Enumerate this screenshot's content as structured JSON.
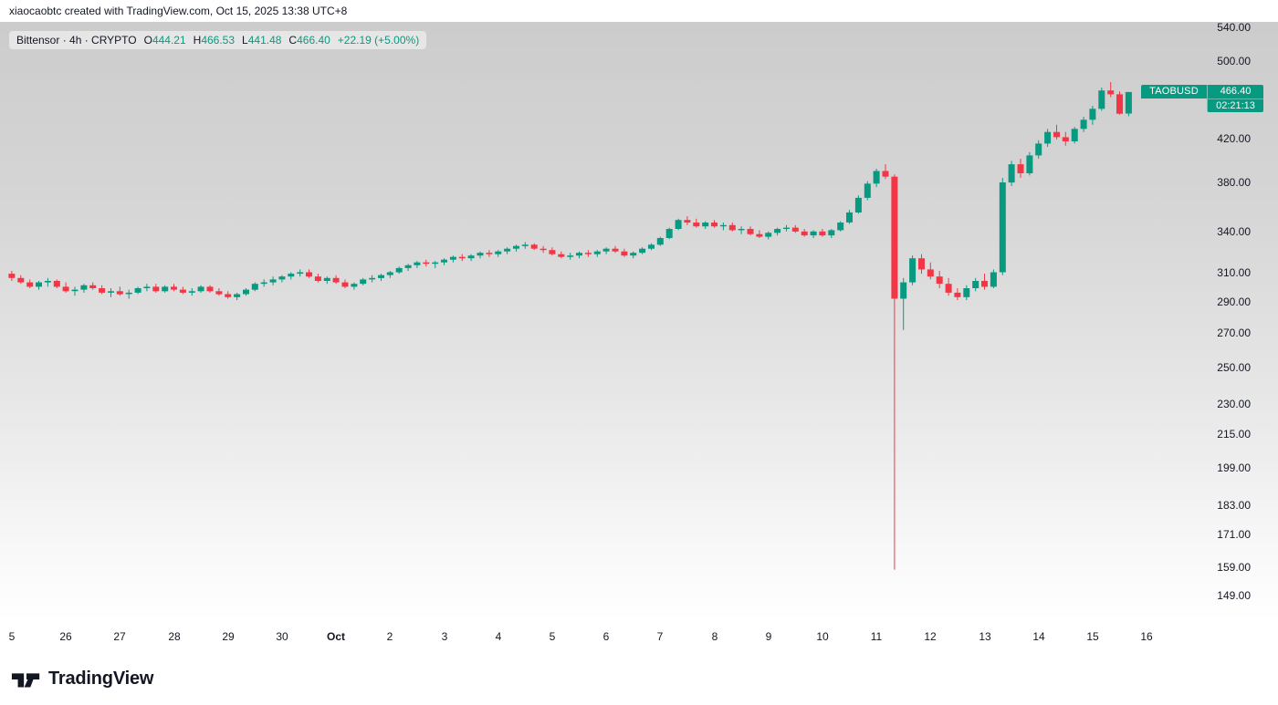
{
  "attribution": {
    "text": "xiaocaobtc created with TradingView.com, Oct 15, 2025 13:38 UTC+8"
  },
  "legend": {
    "title": "Bittensor · 4h · CRYPTO",
    "o_label": "O",
    "o_value": "444.21",
    "h_label": "H",
    "h_value": "466.53",
    "l_label": "L",
    "l_value": "441.48",
    "c_label": "C",
    "c_value": "466.40",
    "change": "+22.19 (+5.00%)"
  },
  "price_label": {
    "symbol": "TAOBUSD",
    "price": "466.40",
    "countdown": "02:21:13"
  },
  "colors": {
    "up": "#089981",
    "down": "#f23645",
    "text": "#131722",
    "label_bg": "#089981"
  },
  "footer": {
    "brand": "TradingView"
  },
  "chart_data": {
    "type": "candlestick",
    "title": "Bittensor · 4h · CRYPTO",
    "symbol": "TAOBUSD",
    "interval": "4h",
    "exchange": "CRYPTO",
    "scale": "log",
    "ylim": [
      149,
      540
    ],
    "last_price": 466.4,
    "candles_per_day": 6,
    "y_axis_labels": [
      540,
      500,
      420,
      380,
      340,
      310,
      290,
      270,
      250,
      230,
      215,
      199,
      183,
      171,
      159,
      149
    ],
    "x_axis": [
      {
        "label": "5",
        "day": 0
      },
      {
        "label": "26",
        "day": 1
      },
      {
        "label": "27",
        "day": 2
      },
      {
        "label": "28",
        "day": 3
      },
      {
        "label": "29",
        "day": 4
      },
      {
        "label": "30",
        "day": 5
      },
      {
        "label": "Oct",
        "day": 6,
        "bold": true
      },
      {
        "label": "2",
        "day": 7
      },
      {
        "label": "3",
        "day": 8
      },
      {
        "label": "4",
        "day": 9
      },
      {
        "label": "5",
        "day": 10
      },
      {
        "label": "6",
        "day": 11
      },
      {
        "label": "7",
        "day": 12
      },
      {
        "label": "8",
        "day": 13
      },
      {
        "label": "9",
        "day": 14
      },
      {
        "label": "10",
        "day": 15
      },
      {
        "label": "11",
        "day": 16
      },
      {
        "label": "12",
        "day": 17
      },
      {
        "label": "13",
        "day": 18
      },
      {
        "label": "14",
        "day": 19
      },
      {
        "label": "15",
        "day": 20
      },
      {
        "label": "16",
        "day": 21
      }
    ],
    "candles": [
      [
        309,
        311,
        304,
        306
      ],
      [
        306,
        308,
        302,
        303
      ],
      [
        303,
        305,
        299,
        300
      ],
      [
        300,
        304,
        298,
        303
      ],
      [
        303,
        306,
        300,
        304
      ],
      [
        304,
        305,
        299,
        300
      ],
      [
        300,
        303,
        296,
        297
      ],
      [
        297,
        300,
        294,
        298
      ],
      [
        298,
        302,
        296,
        301
      ],
      [
        301,
        303,
        298,
        299
      ],
      [
        299,
        301,
        295,
        296
      ],
      [
        296,
        299,
        293,
        297
      ],
      [
        297,
        300,
        294,
        295
      ],
      [
        295,
        298,
        292,
        296
      ],
      [
        296,
        300,
        295,
        299
      ],
      [
        299,
        302,
        297,
        300
      ],
      [
        300,
        302,
        296,
        297
      ],
      [
        297,
        301,
        296,
        300
      ],
      [
        300,
        302,
        297,
        298
      ],
      [
        298,
        300,
        295,
        296
      ],
      [
        296,
        299,
        294,
        297
      ],
      [
        297,
        301,
        296,
        300
      ],
      [
        300,
        301,
        296,
        297
      ],
      [
        297,
        299,
        294,
        295
      ],
      [
        295,
        297,
        292,
        293
      ],
      [
        293,
        296,
        291,
        295
      ],
      [
        295,
        299,
        294,
        298
      ],
      [
        298,
        303,
        297,
        302
      ],
      [
        302,
        305,
        300,
        303
      ],
      [
        303,
        307,
        301,
        305
      ],
      [
        305,
        308,
        303,
        307
      ],
      [
        307,
        310,
        305,
        309
      ],
      [
        309,
        312,
        307,
        310
      ],
      [
        310,
        312,
        306,
        307
      ],
      [
        307,
        309,
        303,
        304
      ],
      [
        304,
        307,
        302,
        306
      ],
      [
        306,
        308,
        302,
        303
      ],
      [
        303,
        305,
        299,
        300
      ],
      [
        300,
        303,
        298,
        302
      ],
      [
        302,
        306,
        301,
        305
      ],
      [
        305,
        308,
        303,
        306
      ],
      [
        306,
        309,
        304,
        308
      ],
      [
        308,
        311,
        306,
        310
      ],
      [
        310,
        314,
        309,
        313
      ],
      [
        313,
        316,
        311,
        315
      ],
      [
        315,
        318,
        313,
        317
      ],
      [
        317,
        319,
        314,
        316
      ],
      [
        316,
        318,
        313,
        317
      ],
      [
        317,
        320,
        315,
        319
      ],
      [
        319,
        322,
        317,
        321
      ],
      [
        321,
        323,
        318,
        320
      ],
      [
        320,
        323,
        318,
        322
      ],
      [
        322,
        325,
        320,
        324
      ],
      [
        324,
        326,
        321,
        323
      ],
      [
        323,
        326,
        321,
        325
      ],
      [
        325,
        328,
        323,
        327
      ],
      [
        327,
        330,
        325,
        329
      ],
      [
        329,
        332,
        327,
        330
      ],
      [
        330,
        331,
        326,
        327
      ],
      [
        327,
        329,
        324,
        326
      ],
      [
        326,
        328,
        322,
        323
      ],
      [
        323,
        325,
        320,
        321
      ],
      [
        321,
        324,
        319,
        322
      ],
      [
        322,
        325,
        320,
        324
      ],
      [
        324,
        326,
        321,
        323
      ],
      [
        323,
        326,
        321,
        325
      ],
      [
        325,
        328,
        323,
        327
      ],
      [
        327,
        329,
        324,
        325
      ],
      [
        325,
        327,
        321,
        322
      ],
      [
        322,
        325,
        320,
        324
      ],
      [
        324,
        328,
        323,
        327
      ],
      [
        327,
        331,
        326,
        330
      ],
      [
        330,
        336,
        329,
        335
      ],
      [
        335,
        343,
        334,
        342
      ],
      [
        342,
        350,
        341,
        349
      ],
      [
        349,
        352,
        345,
        347
      ],
      [
        347,
        350,
        343,
        344
      ],
      [
        344,
        348,
        342,
        347
      ],
      [
        347,
        349,
        343,
        344
      ],
      [
        344,
        347,
        341,
        345
      ],
      [
        345,
        347,
        340,
        341
      ],
      [
        341,
        344,
        338,
        342
      ],
      [
        342,
        344,
        337,
        338
      ],
      [
        338,
        341,
        335,
        336
      ],
      [
        336,
        340,
        334,
        339
      ],
      [
        339,
        343,
        337,
        342
      ],
      [
        342,
        345,
        340,
        343
      ],
      [
        343,
        345,
        339,
        340
      ],
      [
        340,
        342,
        336,
        337
      ],
      [
        337,
        341,
        335,
        340
      ],
      [
        340,
        342,
        336,
        337
      ],
      [
        337,
        342,
        335,
        341
      ],
      [
        341,
        348,
        340,
        347
      ],
      [
        347,
        357,
        346,
        355
      ],
      [
        355,
        369,
        354,
        367
      ],
      [
        367,
        381,
        365,
        379
      ],
      [
        379,
        392,
        376,
        390
      ],
      [
        390,
        396,
        383,
        385
      ],
      [
        385,
        387,
        158,
        292
      ],
      [
        292,
        306,
        272,
        303
      ],
      [
        303,
        322,
        301,
        320
      ],
      [
        320,
        323,
        309,
        312
      ],
      [
        312,
        317,
        305,
        307
      ],
      [
        307,
        311,
        299,
        302
      ],
      [
        302,
        306,
        294,
        296
      ],
      [
        296,
        299,
        291,
        293
      ],
      [
        293,
        301,
        291,
        299
      ],
      [
        299,
        306,
        297,
        304
      ],
      [
        304,
        309,
        298,
        300
      ],
      [
        300,
        312,
        299,
        310
      ],
      [
        310,
        384,
        308,
        380
      ],
      [
        380,
        399,
        377,
        396
      ],
      [
        396,
        401,
        384,
        388
      ],
      [
        388,
        407,
        386,
        404
      ],
      [
        404,
        418,
        401,
        415
      ],
      [
        415,
        429,
        412,
        426
      ],
      [
        426,
        433,
        419,
        421
      ],
      [
        421,
        426,
        413,
        417
      ],
      [
        417,
        431,
        415,
        429
      ],
      [
        429,
        441,
        426,
        438
      ],
      [
        438,
        452,
        433,
        449
      ],
      [
        449,
        471,
        447,
        468
      ],
      [
        468,
        477,
        461,
        464
      ],
      [
        464,
        467,
        443,
        444
      ],
      [
        444.21,
        466.53,
        441.48,
        466.4
      ]
    ]
  }
}
